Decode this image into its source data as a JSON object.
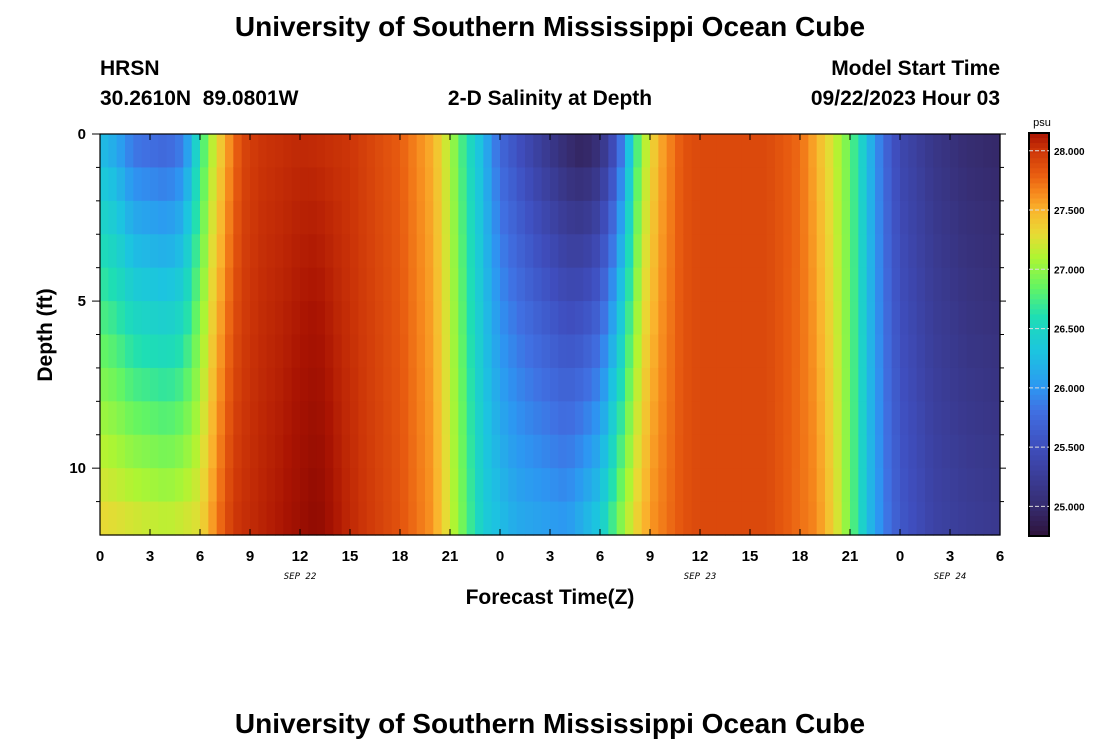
{
  "page": {
    "title": "University of Southern Mississippi Ocean Cube",
    "station": "HRSN",
    "coords": "30.2610N  89.0801W",
    "subtitle": "2-D Salinity at Depth",
    "model_label": "Model Start Time",
    "model_time": "09/22/2023 Hour 03",
    "footer_title": "University of Southern Mississippi Ocean Cube"
  },
  "chart_data": {
    "type": "heatmap",
    "title": "2-D Salinity at Depth",
    "xlabel": "Forecast Time(Z)",
    "ylabel": "Depth (ft)",
    "x_hours_range": [
      0,
      54
    ],
    "x_tick_labels": [
      "0",
      "3",
      "6",
      "9",
      "12",
      "15",
      "18",
      "21",
      "0",
      "3",
      "6",
      "9",
      "12",
      "15",
      "18",
      "21",
      "0",
      "3",
      "6"
    ],
    "date_labels": [
      {
        "label": "SEP 22",
        "at_hour": 12
      },
      {
        "label": "SEP 23",
        "at_hour": 36
      },
      {
        "label": "SEP 24",
        "at_hour": 51
      }
    ],
    "y_range": [
      0,
      12
    ],
    "y_tick_labels": [
      "0",
      "5",
      "10"
    ],
    "y_tick_values": [
      0,
      5,
      10
    ],
    "colorbar": {
      "unit": "psu",
      "range": [
        24.75,
        28.15
      ],
      "tick_labels": [
        "28.000",
        "27.500",
        "27.000",
        "26.500",
        "26.000",
        "25.500",
        "25.000"
      ],
      "tick_values": [
        28.0,
        27.5,
        27.0,
        26.5,
        26.0,
        25.5,
        25.0
      ]
    },
    "surface_salinity_by_hour": [
      {
        "h": 0,
        "v": 26.2
      },
      {
        "h": 1,
        "v": 26.05
      },
      {
        "h": 2,
        "v": 25.75
      },
      {
        "h": 4,
        "v": 25.65
      },
      {
        "h": 5,
        "v": 25.8
      },
      {
        "h": 6,
        "v": 26.6
      },
      {
        "h": 6.7,
        "v": 27.1
      },
      {
        "h": 7.5,
        "v": 27.5
      },
      {
        "h": 8.5,
        "v": 27.9
      },
      {
        "h": 9.5,
        "v": 28.0
      },
      {
        "h": 12,
        "v": 28.05
      },
      {
        "h": 15,
        "v": 28.0
      },
      {
        "h": 18,
        "v": 27.8
      },
      {
        "h": 20,
        "v": 27.5
      },
      {
        "h": 21,
        "v": 27.1
      },
      {
        "h": 22,
        "v": 26.6
      },
      {
        "h": 23,
        "v": 26.2
      },
      {
        "h": 24,
        "v": 25.7
      },
      {
        "h": 26,
        "v": 25.3
      },
      {
        "h": 28,
        "v": 24.95
      },
      {
        "h": 29,
        "v": 24.85
      },
      {
        "h": 30,
        "v": 25.0
      },
      {
        "h": 31,
        "v": 25.5
      },
      {
        "h": 32,
        "v": 26.5
      },
      {
        "h": 32.5,
        "v": 27.0
      },
      {
        "h": 33.5,
        "v": 27.5
      },
      {
        "h": 35,
        "v": 27.85
      },
      {
        "h": 36,
        "v": 27.9
      },
      {
        "h": 40,
        "v": 27.9
      },
      {
        "h": 42,
        "v": 27.75
      },
      {
        "h": 43,
        "v": 27.5
      },
      {
        "h": 44,
        "v": 27.2
      },
      {
        "h": 45,
        "v": 26.85
      },
      {
        "h": 46,
        "v": 26.3
      },
      {
        "h": 47,
        "v": 25.75
      },
      {
        "h": 48,
        "v": 25.4
      },
      {
        "h": 50,
        "v": 25.15
      },
      {
        "h": 52,
        "v": 25.0
      },
      {
        "h": 54,
        "v": 24.95
      }
    ],
    "bottom_salinity_by_hour": [
      {
        "h": 0,
        "v": 27.35
      },
      {
        "h": 4,
        "v": 27.2
      },
      {
        "h": 6,
        "v": 27.3
      },
      {
        "h": 7,
        "v": 27.7
      },
      {
        "h": 8,
        "v": 28.0
      },
      {
        "h": 11,
        "v": 28.15
      },
      {
        "h": 13,
        "v": 28.3
      },
      {
        "h": 14.5,
        "v": 28.1
      },
      {
        "h": 18,
        "v": 27.85
      },
      {
        "h": 20,
        "v": 27.6
      },
      {
        "h": 21,
        "v": 27.2
      },
      {
        "h": 22,
        "v": 26.8
      },
      {
        "h": 23,
        "v": 26.4
      },
      {
        "h": 25,
        "v": 26.15
      },
      {
        "h": 28,
        "v": 26.05
      },
      {
        "h": 30,
        "v": 26.4
      },
      {
        "h": 31,
        "v": 26.9
      },
      {
        "h": 32,
        "v": 27.3
      },
      {
        "h": 33,
        "v": 27.6
      },
      {
        "h": 35,
        "v": 27.85
      },
      {
        "h": 36,
        "v": 27.9
      },
      {
        "h": 40,
        "v": 27.9
      },
      {
        "h": 43,
        "v": 27.65
      },
      {
        "h": 44,
        "v": 27.35
      },
      {
        "h": 45,
        "v": 26.9
      },
      {
        "h": 46,
        "v": 26.3
      },
      {
        "h": 47,
        "v": 25.9
      },
      {
        "h": 48,
        "v": 25.6
      },
      {
        "h": 50,
        "v": 25.35
      },
      {
        "h": 52,
        "v": 25.25
      },
      {
        "h": 54,
        "v": 25.2
      }
    ]
  }
}
